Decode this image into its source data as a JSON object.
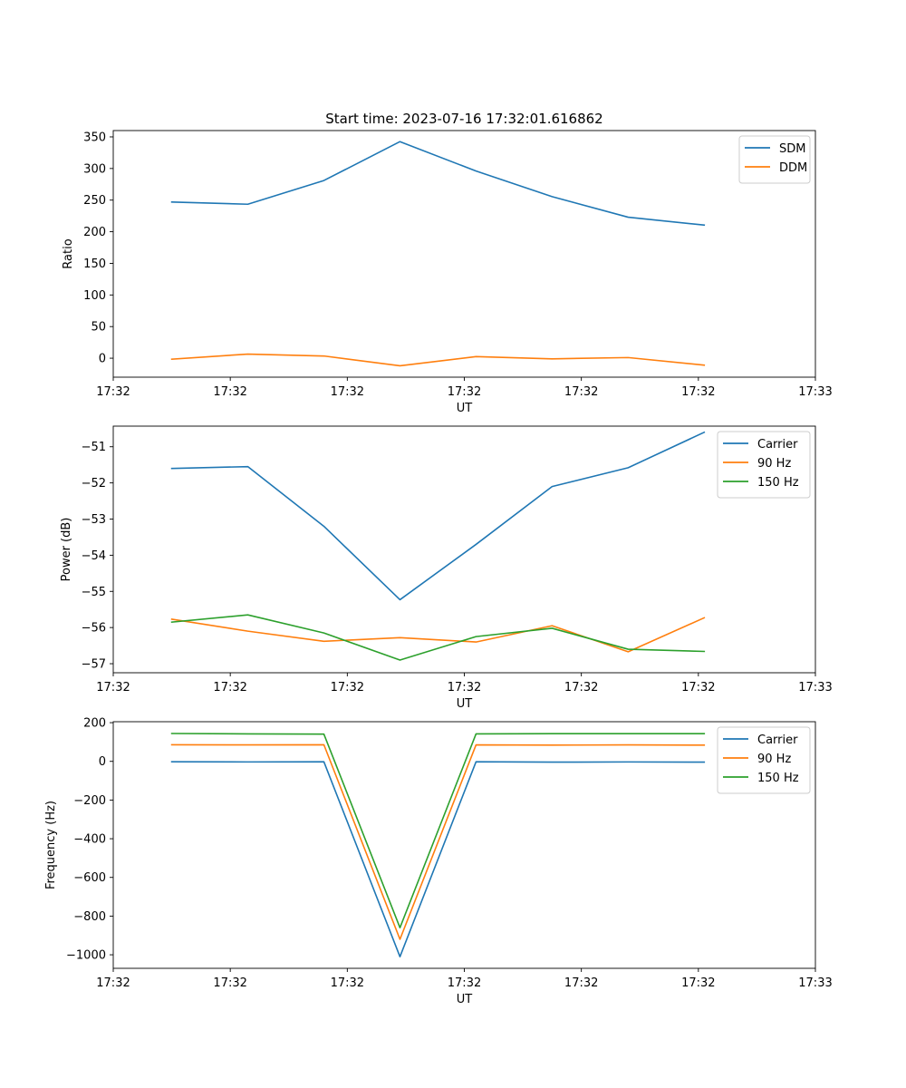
{
  "title": "Start time: 2023-07-16 17:32:01.616862",
  "colors": {
    "c0": "#1f77b4",
    "c1": "#ff7f0e",
    "c2": "#2ca02c"
  },
  "chart_data": [
    {
      "type": "line",
      "title": "Start time: 2023-07-16 17:32:01.616862",
      "xlabel": "UT",
      "ylabel": "Ratio",
      "x_seconds": [
        2.0,
        3.3,
        4.6,
        5.9,
        7.2,
        8.5,
        9.8,
        11.1
      ],
      "xlim": [
        1.0,
        13.0
      ],
      "x_ticks": [
        1.0,
        3.0,
        5.0,
        7.0,
        9.0,
        11.0,
        13.0
      ],
      "x_tick_labels": [
        "17:32",
        "17:32",
        "17:32",
        "17:32",
        "17:32",
        "17:32",
        "17:33"
      ],
      "ylim": [
        -30,
        360
      ],
      "y_ticks": [
        0,
        50,
        100,
        150,
        200,
        250,
        300,
        350
      ],
      "y_tick_labels": [
        "0",
        "50",
        "100",
        "150",
        "200",
        "250",
        "300",
        "350"
      ],
      "legend_position": "top-right",
      "series": [
        {
          "name": "SDM",
          "color": "#1f77b4",
          "values": [
            247,
            243.5,
            281,
            342.5,
            296,
            255.5,
            223,
            210.5
          ]
        },
        {
          "name": "DDM",
          "color": "#ff7f0e",
          "values": [
            -1.5,
            6.5,
            3.5,
            -12,
            2.5,
            -1,
            1,
            -11
          ]
        }
      ]
    },
    {
      "type": "line",
      "xlabel": "UT",
      "ylabel": "Power (dB)",
      "x_seconds": [
        2.0,
        3.3,
        4.6,
        5.9,
        7.2,
        8.5,
        9.8,
        11.1
      ],
      "xlim": [
        1.0,
        13.0
      ],
      "x_ticks": [
        1.0,
        3.0,
        5.0,
        7.0,
        9.0,
        11.0,
        13.0
      ],
      "x_tick_labels": [
        "17:32",
        "17:32",
        "17:32",
        "17:32",
        "17:32",
        "17:32",
        "17:33"
      ],
      "ylim": [
        -57.25,
        -50.43
      ],
      "y_ticks": [
        -57,
        -56,
        -55,
        -54,
        -53,
        -52,
        -51
      ],
      "y_tick_labels": [
        "−57",
        "−56",
        "−55",
        "−54",
        "−53",
        "−52",
        "−51"
      ],
      "legend_position": "top-right",
      "series": [
        {
          "name": "Carrier",
          "color": "#1f77b4",
          "values": [
            -51.6,
            -51.55,
            -53.2,
            -55.23,
            -53.7,
            -52.1,
            -51.58,
            -50.6
          ]
        },
        {
          "name": "90 Hz",
          "color": "#ff7f0e",
          "values": [
            -55.77,
            -56.1,
            -56.38,
            -56.28,
            -56.4,
            -55.95,
            -56.67,
            -55.73
          ]
        },
        {
          "name": "150 Hz",
          "color": "#2ca02c",
          "values": [
            -55.85,
            -55.65,
            -56.15,
            -56.9,
            -56.25,
            -56.02,
            -56.6,
            -56.66
          ]
        }
      ]
    },
    {
      "type": "line",
      "xlabel": "UT",
      "ylabel": "Frequency (Hz)",
      "x_seconds": [
        2.0,
        3.3,
        4.6,
        5.9,
        7.2,
        8.5,
        9.8,
        11.1
      ],
      "xlim": [
        1.0,
        13.0
      ],
      "x_ticks": [
        1.0,
        3.0,
        5.0,
        7.0,
        9.0,
        11.0,
        13.0
      ],
      "x_tick_labels": [
        "17:32",
        "17:32",
        "17:32",
        "17:32",
        "17:32",
        "17:32",
        "17:33"
      ],
      "ylim": [
        -1070,
        205
      ],
      "y_ticks": [
        -1000,
        -800,
        -600,
        -400,
        -200,
        0,
        200
      ],
      "y_tick_labels": [
        "−1000",
        "−800",
        "−600",
        "−400",
        "−200",
        "0",
        "200"
      ],
      "legend_position": "top-right",
      "series": [
        {
          "name": "Carrier",
          "color": "#1f77b4",
          "values": [
            -2,
            -3,
            -2,
            -1010,
            -2,
            -4,
            -3,
            -4
          ]
        },
        {
          "name": "90 Hz",
          "color": "#ff7f0e",
          "values": [
            86,
            85,
            86,
            -920,
            85,
            84,
            85,
            84
          ]
        },
        {
          "name": "150 Hz",
          "color": "#2ca02c",
          "values": [
            144,
            142,
            141,
            -860,
            142,
            143,
            143,
            143
          ]
        }
      ]
    }
  ]
}
